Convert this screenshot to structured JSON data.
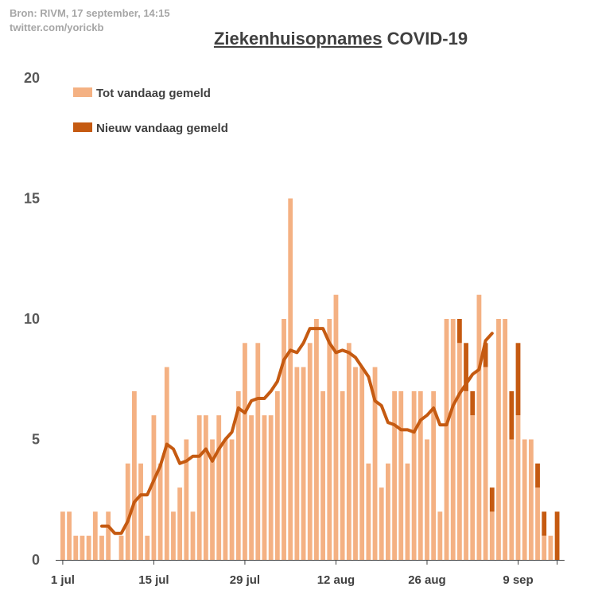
{
  "source": {
    "line1": "Bron: RIVM, 17 september, 14:15",
    "line2": "twitter.com/yorickb"
  },
  "title": {
    "part1": "Ziekenhuisopnames",
    "part2": "COVID-19"
  },
  "chart_data": {
    "type": "bar",
    "stacked": true,
    "ylim": [
      0,
      20
    ],
    "yticks": [
      0,
      5,
      10,
      15,
      20
    ],
    "xtick_labels": [
      {
        "index": 0,
        "label": "1 jul"
      },
      {
        "index": 14,
        "label": "15 jul"
      },
      {
        "index": 28,
        "label": "29 jul"
      },
      {
        "index": 42,
        "label": "12 aug"
      },
      {
        "index": 56,
        "label": "26 aug"
      },
      {
        "index": 70,
        "label": "9 sep"
      }
    ],
    "legend": {
      "position": "top-left"
    },
    "series": [
      {
        "name": "Tot vandaag gemeld",
        "color": "#f4b183",
        "values": [
          2,
          2,
          1,
          1,
          1,
          2,
          1,
          2,
          0,
          1,
          4,
          7,
          4,
          1,
          6,
          4,
          8,
          2,
          3,
          5,
          2,
          6,
          6,
          5,
          6,
          5,
          5,
          7,
          9,
          6,
          9,
          6,
          6,
          7,
          10,
          15,
          8,
          8,
          9,
          10,
          7,
          10,
          11,
          7,
          9,
          8,
          8,
          4,
          8,
          3,
          4,
          7,
          7,
          4,
          7,
          7,
          5,
          7,
          2,
          10,
          10,
          9,
          7,
          6,
          11,
          8,
          2,
          10,
          10,
          5,
          6,
          5,
          5,
          3,
          1,
          1,
          0
        ]
      },
      {
        "name": "Nieuw vandaag gemeld",
        "color": "#c55a11",
        "values": [
          0,
          0,
          0,
          0,
          0,
          0,
          0,
          0,
          0,
          0,
          0,
          0,
          0,
          0,
          0,
          0,
          0,
          0,
          0,
          0,
          0,
          0,
          0,
          0,
          0,
          0,
          0,
          0,
          0,
          0,
          0,
          0,
          0,
          0,
          0,
          0,
          0,
          0,
          0,
          0,
          0,
          0,
          0,
          0,
          0,
          0,
          0,
          0,
          0,
          0,
          0,
          0,
          0,
          0,
          0,
          0,
          0,
          0,
          0,
          0,
          0,
          1,
          2,
          1,
          0,
          1,
          1,
          0,
          0,
          2,
          3,
          0,
          0,
          1,
          1,
          0,
          2
        ]
      }
    ],
    "moving_average": {
      "color": "#c55a11",
      "start_index": 6,
      "values": [
        1.4,
        1.4,
        1.1,
        1.1,
        1.6,
        2.4,
        2.7,
        2.7,
        3.3,
        3.9,
        4.8,
        4.6,
        4.0,
        4.1,
        4.3,
        4.3,
        4.6,
        4.1,
        4.6,
        5.0,
        5.3,
        6.3,
        6.1,
        6.6,
        6.7,
        6.7,
        7.0,
        7.4,
        8.3,
        8.7,
        8.6,
        9.0,
        9.6,
        9.6,
        9.6,
        9.0,
        8.6,
        8.7,
        8.6,
        8.4,
        8.0,
        7.6,
        6.6,
        6.4,
        5.7,
        5.6,
        5.4,
        5.4,
        5.3,
        5.8,
        6.0,
        6.3,
        5.6,
        5.6,
        6.4,
        6.9,
        7.3,
        7.7,
        7.9,
        9.1,
        9.4
      ]
    }
  }
}
